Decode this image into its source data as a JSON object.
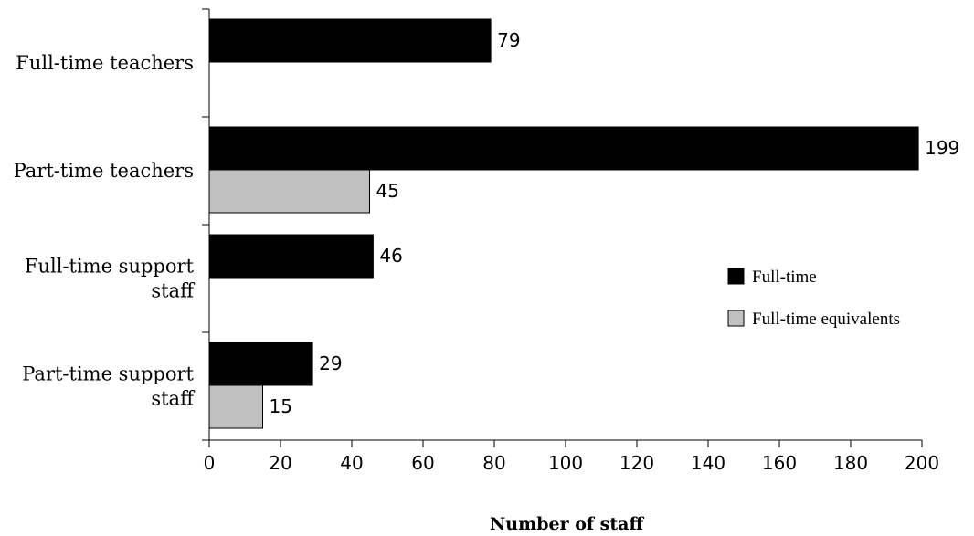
{
  "chart_data": {
    "type": "bar",
    "orientation": "horizontal",
    "categories": [
      [
        "Full-time teachers"
      ],
      [
        "Part-time teachers"
      ],
      [
        "Full-time support",
        "staff"
      ],
      [
        "Part-time support",
        "staff"
      ]
    ],
    "series": [
      {
        "name": "Full-time",
        "values": [
          79,
          199,
          46,
          29
        ],
        "color": "#000000"
      },
      {
        "name": "Full-time equivalents",
        "values": [
          null,
          45,
          null,
          15
        ],
        "color": "#c0c0c0"
      }
    ],
    "xlabel": "Number of staff",
    "xlim": [
      0,
      200
    ],
    "xticks": [
      0,
      20,
      40,
      60,
      80,
      100,
      120,
      140,
      160,
      180,
      200
    ],
    "legend_position": "right",
    "grid": false
  }
}
